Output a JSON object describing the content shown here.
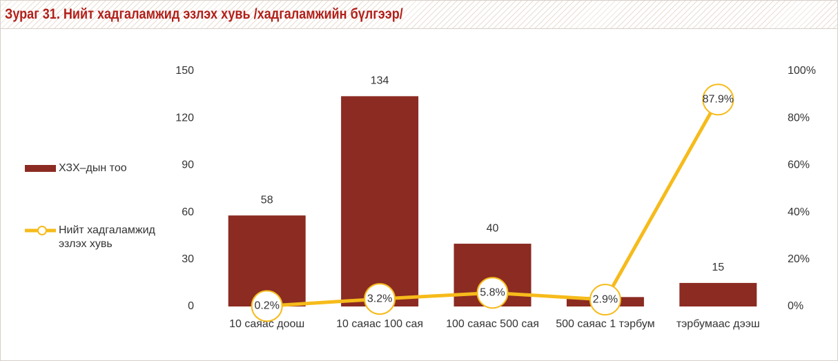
{
  "chart_data": {
    "type": "bar_line",
    "title": "Зураг 31. Нийт хадгаламжид эзлэх хувь /хадгаламжийн бүлгээр/",
    "categories": [
      "10 саяас доош",
      "10 саяас 100 сая",
      "100 саяас 500 сая",
      "500 саяас 1 тэрбум",
      "тэрбумаас дээш"
    ],
    "series": [
      {
        "name": "ХЗХ–дын тоо",
        "type": "bar",
        "color": "#8b2b22",
        "values": [
          58,
          134,
          40,
          6,
          15
        ],
        "value_labels": [
          "58",
          "134",
          "40",
          null,
          "15"
        ]
      },
      {
        "name": "Нийт хадгаламжид эзлэх хувь",
        "type": "line",
        "axis": "y2",
        "color": "#f6bb1b",
        "values": [
          0.2,
          3.2,
          5.8,
          2.9,
          87.9
        ],
        "value_labels": [
          "0.2%",
          "3.2%",
          "5.8%",
          "2.9%",
          "87.9%"
        ]
      }
    ],
    "ylim": [
      0,
      150
    ],
    "yticks": [
      0,
      30,
      60,
      90,
      120,
      150
    ],
    "y2lim": [
      0,
      100
    ],
    "y2ticks": [
      {
        "value": 0,
        "label": "0%"
      },
      {
        "value": 20,
        "label": "20%"
      },
      {
        "value": 40,
        "label": "40%"
      },
      {
        "value": 60,
        "label": "60%"
      },
      {
        "value": 80,
        "label": "80%"
      },
      {
        "value": 100,
        "label": "100%"
      }
    ],
    "legend": "left"
  }
}
